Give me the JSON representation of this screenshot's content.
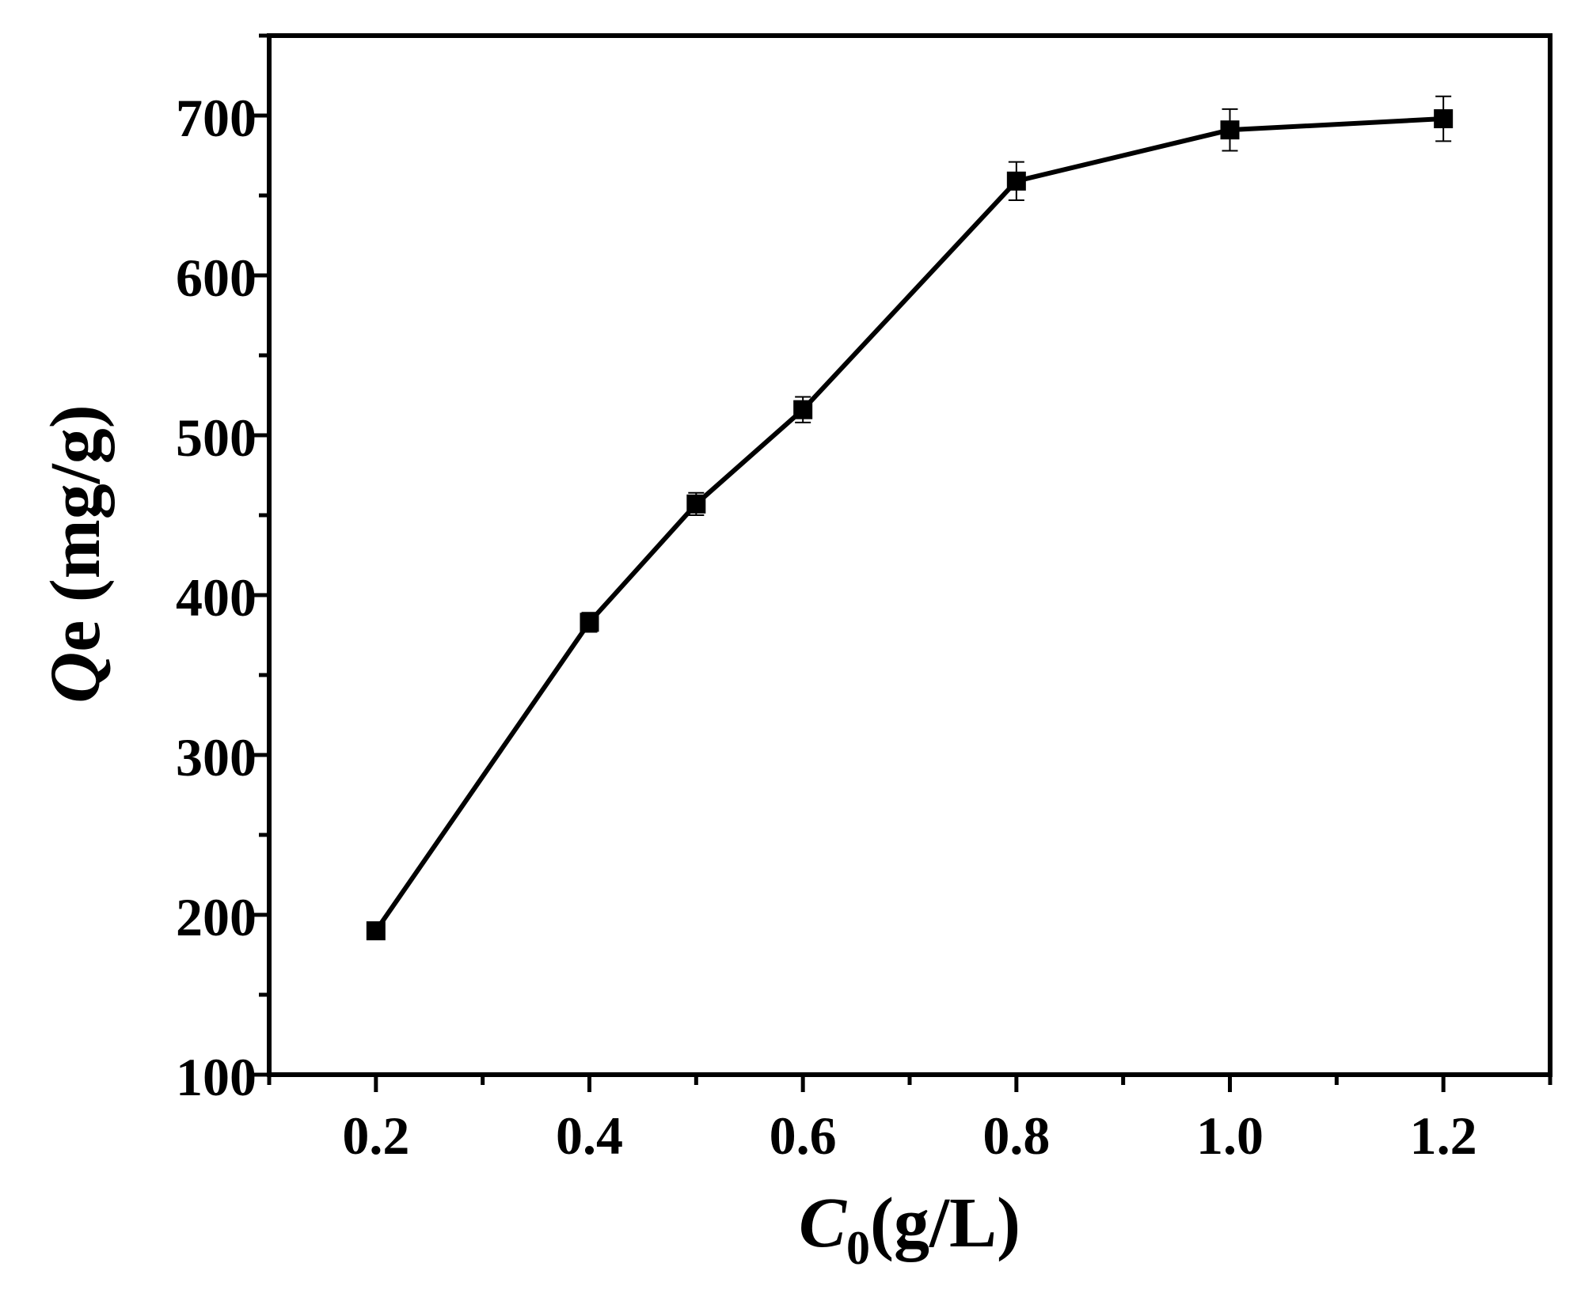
{
  "chart_data": {
    "type": "line",
    "title": "",
    "xlabel": {
      "symbol": "C",
      "subscript": "0",
      "unit": "(g/L)"
    },
    "ylabel": {
      "symbol": "Q",
      "suffix": "e (mg/g)"
    },
    "xlim": [
      0.1,
      1.3
    ],
    "ylim": [
      100,
      750
    ],
    "x_ticks": [
      "0.2",
      "0.4",
      "0.6",
      "0.8",
      "1.0",
      "1.2"
    ],
    "y_ticks": [
      "100",
      "200",
      "300",
      "400",
      "500",
      "600",
      "700"
    ],
    "x_minor_ticks": [
      0.1,
      0.3,
      0.5,
      0.7,
      0.9,
      1.1,
      1.3
    ],
    "y_minor_ticks": [
      150,
      250,
      350,
      450,
      550,
      650,
      750
    ],
    "grid": false,
    "legend": "none",
    "series": [
      {
        "marker": "square",
        "color": "#000000",
        "x": [
          0.2,
          0.4,
          0.5,
          0.6,
          0.8,
          1.0,
          1.2
        ],
        "y": [
          190,
          383,
          457,
          516,
          659,
          691,
          698
        ],
        "error": [
          5,
          6,
          7,
          8,
          12,
          13,
          14
        ]
      }
    ]
  }
}
